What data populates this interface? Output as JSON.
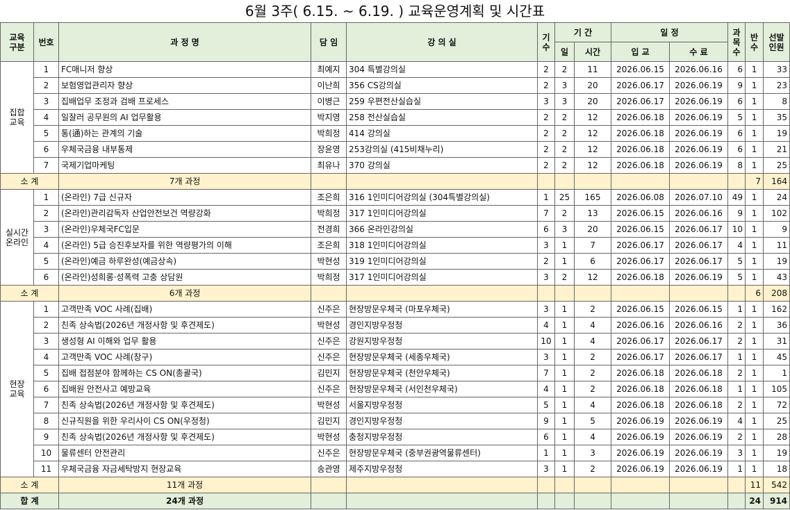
{
  "title": "6월 3주( 6.15. ~ 6.19. ) 교육운영계획 및 시간표",
  "header": {
    "group": "교육\n구분",
    "no": "번호",
    "course": "과 정 명",
    "teacher": "담 임",
    "room": "강 의 실",
    "gisu": "기\n수",
    "period": "기 간",
    "days": "일",
    "hours": "시간",
    "schedule": "일 정",
    "start": "입 교",
    "end": "수 료",
    "subjects": "과\n목\n수",
    "classes": "반\n수",
    "people": "선발\n인원"
  },
  "groups": [
    {
      "name": "집합\n교육",
      "rows": [
        [
          1,
          "FC매니저 향상",
          "최예지",
          "304 특별강의실",
          2,
          2,
          11,
          "2026.06.15",
          "2026.06.16",
          6,
          1,
          33
        ],
        [
          2,
          "보험영업관리자 향상",
          "이난희",
          "356 CS강의실",
          2,
          3,
          20,
          "2026.06.17",
          "2026.06.19",
          9,
          1,
          23
        ],
        [
          3,
          "집배업무 조정과 검배 프로세스",
          "이병근",
          "259 우편전산실습실",
          3,
          3,
          20,
          "2026.06.17",
          "2026.06.19",
          6,
          1,
          8
        ],
        [
          4,
          "일잘러 공무원의 AI 업무활용",
          "박지영",
          "258 전산실습실",
          2,
          2,
          12,
          "2026.06.18",
          "2026.06.19",
          5,
          1,
          35
        ],
        [
          5,
          "통(通)하는 관계의 기술",
          "박희정",
          "414 강의실",
          2,
          2,
          12,
          "2026.06.18",
          "2026.06.19",
          6,
          1,
          19
        ],
        [
          6,
          "우체국금융 내부통제",
          "장윤영",
          "253강의실 (415비채누리)",
          2,
          2,
          12,
          "2026.06.18",
          "2026.06.19",
          6,
          1,
          21
        ],
        [
          7,
          "국제기업마케팅",
          "최유나",
          "370 강의실",
          2,
          2,
          12,
          "2026.06.18",
          "2026.06.19",
          8,
          1,
          25
        ]
      ],
      "subtotal": {
        "label": "소 계",
        "courses": "7개 과정",
        "classes": 7,
        "people": 164
      }
    },
    {
      "name": "실시간\n온라인",
      "rows": [
        [
          1,
          "(온라인) 7급 신규자",
          "조은희",
          "316 1인미디어강의실 (304특별강의실)",
          1,
          25,
          165,
          "2026.06.08",
          "2026.07.10",
          49,
          1,
          24
        ],
        [
          2,
          "(온라인)관리감독자 산업안전보건 역량강화",
          "박희정",
          "317 1인미디어강의실",
          7,
          2,
          13,
          "2026.06.15",
          "2026.06.16",
          9,
          1,
          102
        ],
        [
          3,
          "(온라인)우체국FC입문",
          "전경희",
          "366 온라인강의실",
          6,
          3,
          20,
          "2026.06.15",
          "2026.06.17",
          10,
          1,
          9
        ],
        [
          4,
          "(온라인) 5급 승진후보자를 위한 역량평가의 이해",
          "조은희",
          "318 1인미디어강의실",
          3,
          1,
          7,
          "2026.06.17",
          "2026.06.17",
          4,
          1,
          11
        ],
        [
          5,
          "(온라인)예금 하루완성(예금상속)",
          "박현성",
          "319 1인미디어강의실",
          2,
          1,
          6,
          "2026.06.17",
          "2026.06.17",
          5,
          1,
          19
        ],
        [
          6,
          "(온라인)성희롱·성폭력 고충 상담원",
          "박희정",
          "317 1인미디어강의실",
          3,
          2,
          12,
          "2026.06.18",
          "2026.06.19",
          5,
          1,
          43
        ]
      ],
      "subtotal": {
        "label": "소 계",
        "courses": "6개 과정",
        "classes": 6,
        "people": 208
      }
    },
    {
      "name": "현장\n교육",
      "rows": [
        [
          1,
          "고객만족 VOC 사례(집배)",
          "신주은",
          "현장방문우체국 (마포우체국)",
          3,
          1,
          2,
          "2026.06.15",
          "2026.06.15",
          1,
          1,
          162
        ],
        [
          2,
          "친족 상속법(2026년 개정사항 및 후견제도)",
          "박현성",
          "경인지방우정청",
          4,
          1,
          4,
          "2026.06.16",
          "2026.06.16",
          2,
          1,
          36
        ],
        [
          3,
          "생성형 AI 이해와 업무 활용",
          "신주은",
          "강원지방우정청",
          10,
          1,
          4,
          "2026.06.17",
          "2026.06.17",
          2,
          1,
          31
        ],
        [
          4,
          "고객만족 VOC 사례(창구)",
          "신주은",
          "현장방문우체국 (세종우체국)",
          3,
          1,
          2,
          "2026.06.17",
          "2026.06.17",
          1,
          1,
          45
        ],
        [
          5,
          "집배 접점분야 함께하는 CS ON(총괄국)",
          "김민지",
          "현장방문우체국 (천안우체국)",
          7,
          1,
          2,
          "2026.06.18",
          "2026.06.18",
          2,
          1,
          1
        ],
        [
          6,
          "집배원 안전사고 예방교육",
          "신주은",
          "현장방문우체국 (서인천우체국)",
          4,
          1,
          2,
          "2026.06.18",
          "2026.06.18",
          1,
          1,
          105
        ],
        [
          7,
          "친족 상속법(2026년 개정사항 및 후견제도)",
          "박현성",
          "서울지방우정청",
          5,
          1,
          4,
          "2026.06.18",
          "2026.06.18",
          2,
          1,
          72
        ],
        [
          8,
          "신규직원을 위한 우리사이 CS ON(우정청)",
          "김민지",
          "경인지방우정청",
          9,
          1,
          5,
          "2026.06.19",
          "2026.06.19",
          4,
          1,
          25
        ],
        [
          9,
          "친족 상속법(2026년 개정사항 및 후견제도)",
          "박현성",
          "충청지방우정청",
          6,
          1,
          4,
          "2026.06.19",
          "2026.06.19",
          2,
          1,
          28
        ],
        [
          10,
          "물류센터 안전관리",
          "신주은",
          "현장방문우체국 (중부권광역물류센터)",
          1,
          1,
          3,
          "2026.06.19",
          "2026.06.19",
          3,
          1,
          19
        ],
        [
          11,
          "우체국금융 자금세탁방지 현장교육",
          "송관영",
          "제주지방우정청",
          3,
          1,
          2,
          "2026.06.19",
          "2026.06.19",
          1,
          1,
          18
        ]
      ],
      "subtotal": {
        "label": "소 계",
        "courses": "11개 과정",
        "classes": 11,
        "people": 542
      }
    }
  ],
  "total": {
    "label": "합 계",
    "courses": "24개 과정",
    "classes": 24,
    "people": 914
  }
}
